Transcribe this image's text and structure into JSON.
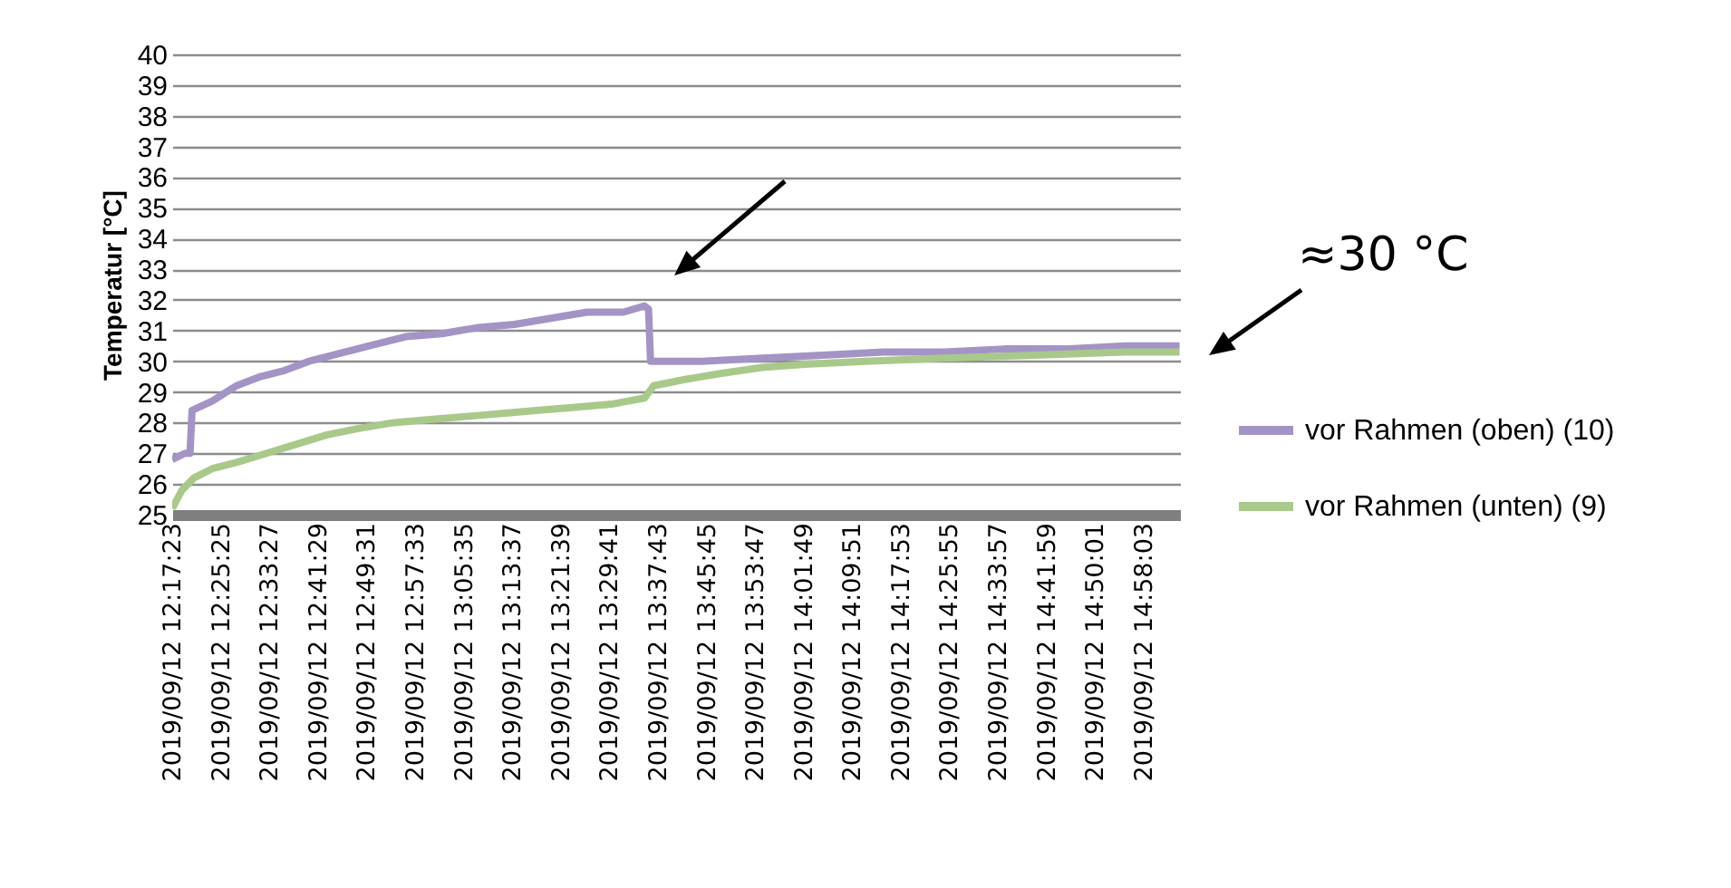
{
  "chart_data": {
    "type": "line",
    "ylabel": "Temperatur [°C]",
    "annotations": [
      "≈30 °C"
    ],
    "xlim": [
      "2019-09-12T12:17:23",
      "2019-09-12T15:04:04"
    ],
    "xticks": [
      {
        "value": "2019-09-12T12:17:23",
        "label": "2019/09/12 12:17:23"
      },
      {
        "value": "2019-09-12T12:25:25",
        "label": "2019/09/12 12:25:25"
      },
      {
        "value": "2019-09-12T12:33:27",
        "label": "2019/09/12 12:33:27"
      },
      {
        "value": "2019-09-12T12:41:29",
        "label": "2019/09/12 12:41:29"
      },
      {
        "value": "2019-09-12T12:49:31",
        "label": "2019/09/12 12:49:31"
      },
      {
        "value": "2019-09-12T12:57:33",
        "label": "2019/09/12 12:57:33"
      },
      {
        "value": "2019-09-12T13:05:35",
        "label": "2019/09/12 13:05:35"
      },
      {
        "value": "2019-09-12T13:13:37",
        "label": "2019/09/12 13:13:37"
      },
      {
        "value": "2019-09-12T13:21:39",
        "label": "2019/09/12 13:21:39"
      },
      {
        "value": "2019-09-12T13:29:41",
        "label": "2019/09/12 13:29:41"
      },
      {
        "value": "2019-09-12T13:37:43",
        "label": "2019/09/12 13:37:43"
      },
      {
        "value": "2019-09-12T13:45:45",
        "label": "2019/09/12 13:45:45"
      },
      {
        "value": "2019-09-12T13:53:47",
        "label": "2019/09/12 13:53:47"
      },
      {
        "value": "2019-09-12T14:01:49",
        "label": "2019/09/12 14:01:49"
      },
      {
        "value": "2019-09-12T14:09:51",
        "label": "2019/09/12 14:09:51"
      },
      {
        "value": "2019-09-12T14:17:53",
        "label": "2019/09/12 14:17:53"
      },
      {
        "value": "2019-09-12T14:25:55",
        "label": "2019/09/12 14:25:55"
      },
      {
        "value": "2019-09-12T14:33:57",
        "label": "2019/09/12 14:33:57"
      },
      {
        "value": "2019-09-12T14:41:59",
        "label": "2019/09/12 14:41:59"
      },
      {
        "value": "2019-09-12T14:50:01",
        "label": "2019/09/12 14:50:01"
      },
      {
        "value": "2019-09-12T14:58:03",
        "label": "2019/09/12 14:58:03"
      }
    ],
    "ylim": [
      25,
      40
    ],
    "yticks": [
      25,
      26,
      27,
      28,
      29,
      30,
      31,
      32,
      33,
      34,
      35,
      36,
      37,
      38,
      39,
      40
    ],
    "grid": "y",
    "legend": "right",
    "series": [
      {
        "name": "vor Rahmen (oben) (10)",
        "color": "#a394c5",
        "x": [
          "2019-09-12T12:17:23",
          "2019-09-12T12:19:30",
          "2019-09-12T12:20:20",
          "2019-09-12T12:20:40",
          "2019-09-12T12:24:00",
          "2019-09-12T12:28:00",
          "2019-09-12T12:32:00",
          "2019-09-12T12:36:00",
          "2019-09-12T12:40:00",
          "2019-09-12T12:44:00",
          "2019-09-12T12:50:00",
          "2019-09-12T12:56:00",
          "2019-09-12T13:02:00",
          "2019-09-12T13:08:00",
          "2019-09-12T13:14:00",
          "2019-09-12T13:20:00",
          "2019-09-12T13:26:00",
          "2019-09-12T13:32:00",
          "2019-09-12T13:35:30",
          "2019-09-12T13:36:10",
          "2019-09-12T13:36:30",
          "2019-09-12T13:45:00",
          "2019-09-12T13:55:00",
          "2019-09-12T14:05:00",
          "2019-09-12T14:15:00",
          "2019-09-12T14:25:00",
          "2019-09-12T14:35:00",
          "2019-09-12T14:45:00",
          "2019-09-12T14:55:00",
          "2019-09-12T15:04:00"
        ],
        "values": [
          26.8,
          27.0,
          27.0,
          28.4,
          28.7,
          29.2,
          29.5,
          29.7,
          30.0,
          30.2,
          30.5,
          30.8,
          30.9,
          31.1,
          31.2,
          31.4,
          31.6,
          31.6,
          31.8,
          31.7,
          30.0,
          30.0,
          30.1,
          30.2,
          30.3,
          30.3,
          30.4,
          30.4,
          30.5,
          30.5
        ]
      },
      {
        "name": "vor Rahmen (unten) (9)",
        "color": "#a9c98a",
        "x": [
          "2019-09-12T12:17:23",
          "2019-09-12T12:19:00",
          "2019-09-12T12:21:00",
          "2019-09-12T12:24:00",
          "2019-09-12T12:28:00",
          "2019-09-12T12:33:00",
          "2019-09-12T12:38:00",
          "2019-09-12T12:43:00",
          "2019-09-12T12:48:00",
          "2019-09-12T12:54:00",
          "2019-09-12T13:00:00",
          "2019-09-12T13:06:00",
          "2019-09-12T13:12:00",
          "2019-09-12T13:18:00",
          "2019-09-12T13:24:00",
          "2019-09-12T13:30:00",
          "2019-09-12T13:35:30",
          "2019-09-12T13:37:00",
          "2019-09-12T13:42:00",
          "2019-09-12T13:48:00",
          "2019-09-12T13:55:00",
          "2019-09-12T14:02:00",
          "2019-09-12T14:12:00",
          "2019-09-12T14:25:00",
          "2019-09-12T14:40:00",
          "2019-09-12T14:55:00",
          "2019-09-12T15:04:00"
        ],
        "values": [
          25.2,
          25.8,
          26.2,
          26.5,
          26.7,
          27.0,
          27.3,
          27.6,
          27.8,
          28.0,
          28.1,
          28.2,
          28.3,
          28.4,
          28.5,
          28.6,
          28.8,
          29.2,
          29.4,
          29.6,
          29.8,
          29.9,
          30.0,
          30.1,
          30.2,
          30.3,
          30.3
        ]
      }
    ]
  }
}
